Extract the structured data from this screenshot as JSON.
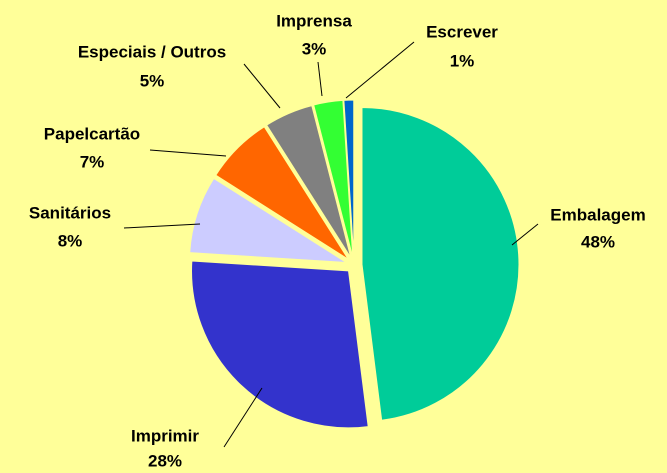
{
  "chart_data": {
    "type": "pie",
    "categories": [
      "Embalagem",
      "Imprimir",
      "Sanitários",
      "Papelcartão",
      "Especiais / Outros",
      "Imprensa",
      "Escrever"
    ],
    "values": [
      48,
      28,
      8,
      7,
      5,
      3,
      1
    ],
    "value_labels": [
      "48%",
      "28%",
      "8%",
      "7%",
      "5%",
      "3%",
      "1%"
    ],
    "colors": [
      "#00cc99",
      "#3333cc",
      "#ccccff",
      "#ff6600",
      "#808080",
      "#33ff33",
      "#0066cc"
    ]
  }
}
